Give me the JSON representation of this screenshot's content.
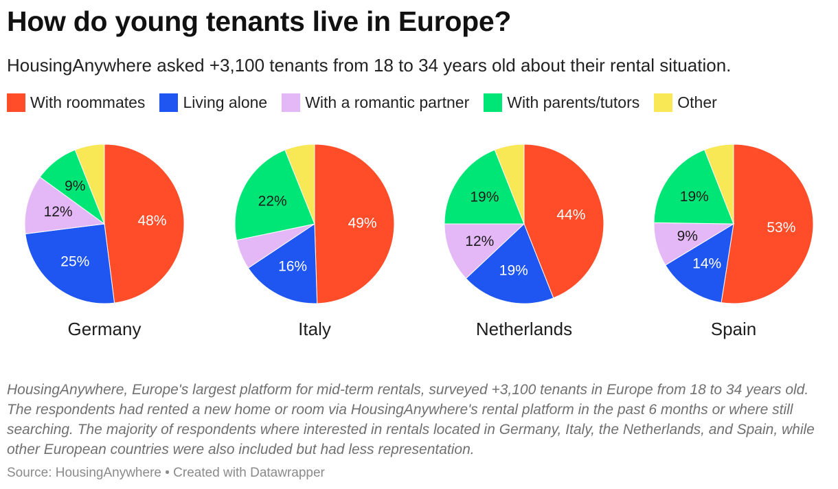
{
  "title": "How do young tenants live in Europe?",
  "subtitle": "HousingAnywhere asked +3,100 tenants from 18 to 34 years old about their rental situation.",
  "notes": "HousingAnywhere, Europe's largest platform for mid-term rentals, surveyed +3,100 tenants in Europe from 18 to 34 years old. The respondents had rented a new home or room via HousingAnywhere's rental platform in the past 6 months or where still searching. The majority of respondents where interested in rentals located in Germany, Italy, the Netherlands, and Spain, while other European countries were also included but had less representation.",
  "source": "Source: HousingAnywhere • Created with Datawrapper",
  "chart_data": {
    "type": "pie",
    "categories": [
      "With roommates",
      "Living alone",
      "With a romantic partner",
      "With parents/tutors",
      "Other"
    ],
    "colors": [
      "#ff4d2a",
      "#1f55f0",
      "#e4b8f7",
      "#00e676",
      "#f9e856"
    ],
    "charts": [
      {
        "name": "Germany",
        "values": [
          48,
          25,
          12,
          9,
          6
        ],
        "labels": [
          "48%",
          "25%",
          "12%",
          "9%",
          ""
        ]
      },
      {
        "name": "Italy",
        "values": [
          49,
          16,
          6,
          22,
          6
        ],
        "labels": [
          "49%",
          "16%",
          "",
          "22%",
          ""
        ]
      },
      {
        "name": "Netherlands",
        "values": [
          44,
          19,
          12,
          19,
          6
        ],
        "labels": [
          "44%",
          "19%",
          "12%",
          "19%",
          ""
        ]
      },
      {
        "name": "Spain",
        "values": [
          53,
          14,
          9,
          19,
          6
        ],
        "labels": [
          "53%",
          "14%",
          "9%",
          "19%",
          ""
        ]
      }
    ]
  }
}
